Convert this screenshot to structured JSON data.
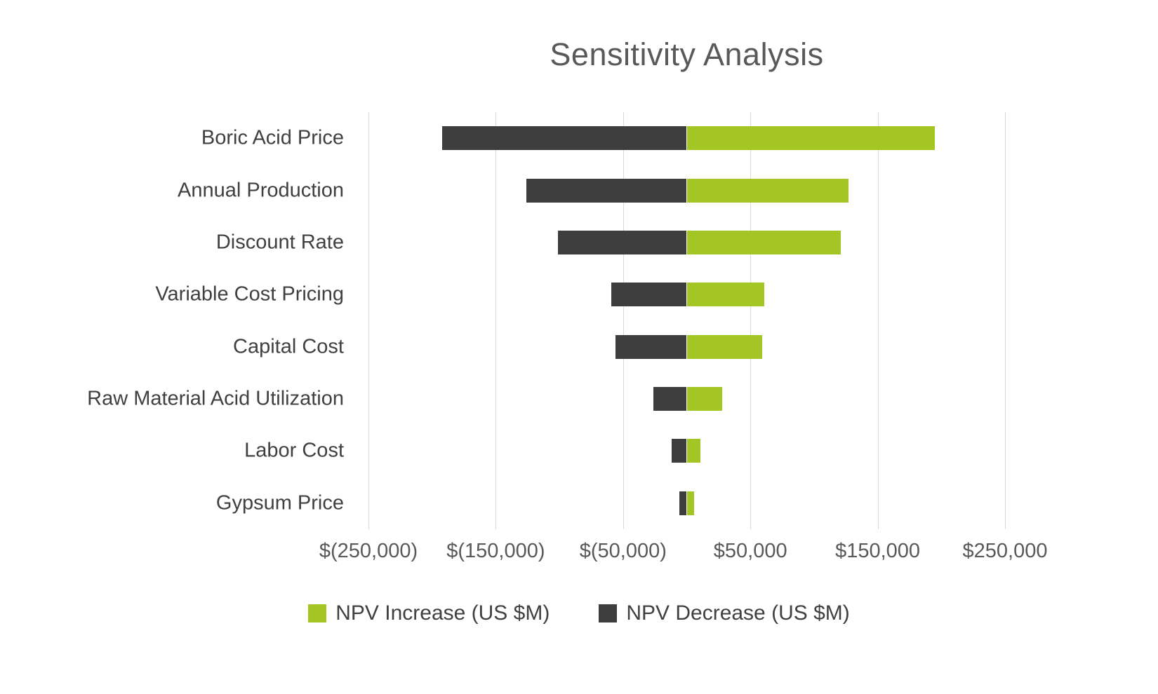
{
  "chart_data": {
    "type": "bar",
    "subtype": "tornado",
    "orientation": "horizontal",
    "title": "Sensitivity Analysis",
    "categories": [
      "Boric Acid Price",
      "Annual Production",
      "Discount Rate",
      "Variable Cost Pricing",
      "Capital Cost",
      "Raw Material Acid Utilization",
      "Labor Cost",
      "Gypsum Price"
    ],
    "series": [
      {
        "name": "NPV Increase (US $M)",
        "color": "#a4c625",
        "values": [
          195000,
          127000,
          121000,
          61000,
          59000,
          28000,
          11000,
          6000
        ]
      },
      {
        "name": "NPV Decrease (US $M)",
        "color": "#3e3e3e",
        "values": [
          -192000,
          -126000,
          -101000,
          -59000,
          -56000,
          -26000,
          -12000,
          -6000
        ]
      }
    ],
    "xlim": [
      -250000,
      250000
    ],
    "x_ticks": [
      {
        "value": -250000,
        "label": "$(250,000)"
      },
      {
        "value": -150000,
        "label": "$(150,000)"
      },
      {
        "value": -50000,
        "label": "$(50,000)"
      },
      {
        "value": 50000,
        "label": "$50,000"
      },
      {
        "value": 150000,
        "label": "$150,000"
      },
      {
        "value": 250000,
        "label": "$250,000"
      }
    ],
    "grid": "vertical",
    "legend_position": "bottom",
    "colors": {
      "increase": "#a4c625",
      "decrease": "#3e3e3e",
      "gridline": "#d9d9d9",
      "title_text": "#595959",
      "label_text": "#404040"
    }
  }
}
